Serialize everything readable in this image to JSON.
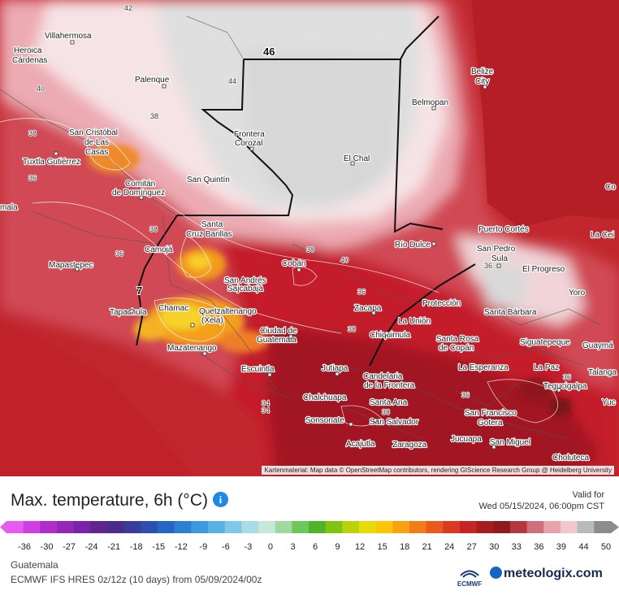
{
  "map": {
    "attribution": "Kartenmaterial: Map data © OpenStreetMap contributors, rendering GIScience Research Group @ Heidelberg University",
    "cities": [
      {
        "name": "Villahermosa"
      },
      {
        "name": "Heroica"
      },
      {
        "name": "Cárdenas"
      },
      {
        "name": "Palenque"
      },
      {
        "name": "San Cristóbal"
      },
      {
        "name": "de Las"
      },
      {
        "name": "Casas"
      },
      {
        "name": "Tuxtla Gutiérrez"
      },
      {
        "name": "Comitán"
      },
      {
        "name": "de Domínguez"
      },
      {
        "name": "San Quintín"
      },
      {
        "name": "Frontera"
      },
      {
        "name": "Corozal"
      },
      {
        "name": "El Chal"
      },
      {
        "name": "Belmopan"
      },
      {
        "name": "Belize"
      },
      {
        "name": "City"
      },
      {
        "name": "Santa"
      },
      {
        "name": "Cruz Barillas"
      },
      {
        "name": "Camojá"
      },
      {
        "name": "Mapastepec"
      },
      {
        "name": "Cobán"
      },
      {
        "name": "Río Dulce"
      },
      {
        "name": "Puerto Cortés"
      },
      {
        "name": "San Pedro"
      },
      {
        "name": "Sula"
      },
      {
        "name": "El Progreso"
      },
      {
        "name": "San Andrés"
      },
      {
        "name": "Sajcabajá"
      },
      {
        "name": "Tapachula"
      },
      {
        "name": "Chamac"
      },
      {
        "name": "Quetzaltenango"
      },
      {
        "name": "(Xela)"
      },
      {
        "name": "Zacapa"
      },
      {
        "name": "La Unión"
      },
      {
        "name": "Protección"
      },
      {
        "name": "Santa Bárbara"
      },
      {
        "name": "Yoro"
      },
      {
        "name": "Ciudad de"
      },
      {
        "name": "Guatemala"
      },
      {
        "name": "Chiquimula"
      },
      {
        "name": "Santa Rosa"
      },
      {
        "name": "de Copán"
      },
      {
        "name": "Siguatepeque"
      },
      {
        "name": "Guaymá"
      },
      {
        "name": "Mazatenango"
      },
      {
        "name": "La Esperanza"
      },
      {
        "name": "La Paz"
      },
      {
        "name": "Tegucigalpa"
      },
      {
        "name": "Talanga"
      },
      {
        "name": "Escuintla"
      },
      {
        "name": "Jutiapa"
      },
      {
        "name": "Candelaria"
      },
      {
        "name": "de la Frontera"
      },
      {
        "name": "Chalchuapa"
      },
      {
        "name": "Santa Ana"
      },
      {
        "name": "San Francisco"
      },
      {
        "name": "Gotera"
      },
      {
        "name": "Sonsonate"
      },
      {
        "name": "San Salvador"
      },
      {
        "name": "Jucuapa"
      },
      {
        "name": "San Miguel"
      },
      {
        "name": "Acajutla"
      },
      {
        "name": "Zaragoza"
      },
      {
        "name": "Choluteca"
      },
      {
        "name": "Yuc"
      },
      {
        "name": "Co"
      },
      {
        "name": "La Cei"
      },
      {
        "name": "mala"
      }
    ],
    "isolines": [
      "42",
      "40",
      "44",
      "38",
      "38",
      "36",
      "40",
      "38",
      "38",
      "36",
      "36",
      "38",
      "36",
      "36",
      "34",
      "36",
      "34",
      "38",
      "7"
    ],
    "highlight_value": "46"
  },
  "legend": {
    "title": "Max. temperature, 6h (°C)",
    "info_icon": "info-icon",
    "valid_label": "Valid for",
    "valid_time": "Wed 05/15/2024, 06:00pm CST",
    "ticks": [
      "-36",
      "-30",
      "-27",
      "-24",
      "-21",
      "-18",
      "-15",
      "-12",
      "-9",
      "-6",
      "-3",
      "0",
      "3",
      "6",
      "9",
      "12",
      "15",
      "18",
      "21",
      "24",
      "27",
      "30",
      "33",
      "36",
      "39",
      "44",
      "50"
    ],
    "colors": [
      "#e65cf0",
      "#cf3fe3",
      "#b02dcc",
      "#9327b8",
      "#7a23a6",
      "#62248f",
      "#4a2c8a",
      "#3a3c9a",
      "#2d4fb0",
      "#2566c4",
      "#2d7fd4",
      "#3d99dd",
      "#58b1e4",
      "#7fc8e8",
      "#a9dde6",
      "#c6e7d9",
      "#9fd9a0",
      "#6ec75b",
      "#4fb32b",
      "#7fc314",
      "#b7d30a",
      "#e7dc05",
      "#fbc508",
      "#f9a210",
      "#f47c18",
      "#ea5a1c",
      "#dc3a20",
      "#c62522",
      "#a81c20",
      "#8e1a1e",
      "#b7373f",
      "#d0707a",
      "#e6a3ab",
      "#f0c7cc",
      "#b9b9b9",
      "#8c8c8c"
    ]
  },
  "footer": {
    "region": "Guatemala",
    "model": "ECMWF IFS HRES 0z/12z (10 days) from 05/09/2024/00z",
    "ecmwf_label": "ECMWF",
    "brand": "meteologix.com"
  }
}
